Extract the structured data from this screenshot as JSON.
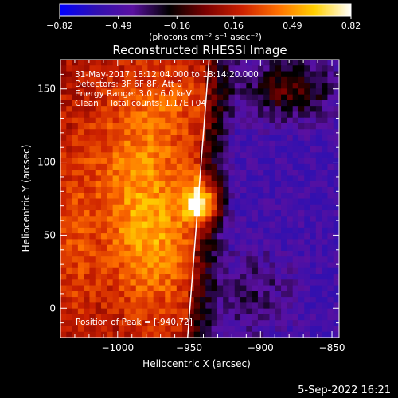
{
  "chart_data": {
    "type": "heatmap",
    "title": "Reconstructed RHESSI Image",
    "xlabel": "Heliocentric X (arcsec)",
    "ylabel": "Heliocentric Y (arcsec)",
    "xlim": [
      -1040,
      -845
    ],
    "ylim": [
      -20,
      170
    ],
    "x_ticks": [
      -1000,
      -950,
      -900,
      -850
    ],
    "x_tick_labels": [
      "−1000",
      "−950",
      "−900",
      "−850"
    ],
    "y_ticks": [
      0,
      50,
      100,
      150
    ],
    "y_tick_labels": [
      "0",
      "50",
      "100",
      "150"
    ],
    "colorbar": {
      "ticks": [
        -0.82,
        -0.49,
        -0.16,
        0.16,
        0.49,
        0.82
      ],
      "tick_labels": [
        "−0.82",
        "−0.49",
        "−0.16",
        "0.16",
        "0.49",
        "0.82"
      ],
      "unit_label": "(photons cm⁻² s⁻¹ asec⁻²)",
      "range": [
        -0.82,
        0.82
      ],
      "stops": [
        "#0000ff",
        "#3010b0",
        "#5a10a0",
        "#000000",
        "#7a0000",
        "#cc2000",
        "#ff7000",
        "#ffd000",
        "#ffffff"
      ]
    },
    "annotations": [
      "31-May-2017 18:12:04.000 to 18:14:20.000",
      "Detectors: 3F 6F 8F, Att 0",
      "Energy Range: 3.0 - 6.0 keV",
      "Clean    Total counts: 1.17E+04"
    ],
    "peak_label": "Position of Peak = [-940,72]",
    "peak": {
      "x": -940,
      "y": 72,
      "value": 0.82
    },
    "limb_line": {
      "x_start": -936,
      "y_start": 170,
      "x_end": -951,
      "y_end": -20
    },
    "grid": false
  },
  "footer_timestamp": "5-Sep-2022 16:21"
}
